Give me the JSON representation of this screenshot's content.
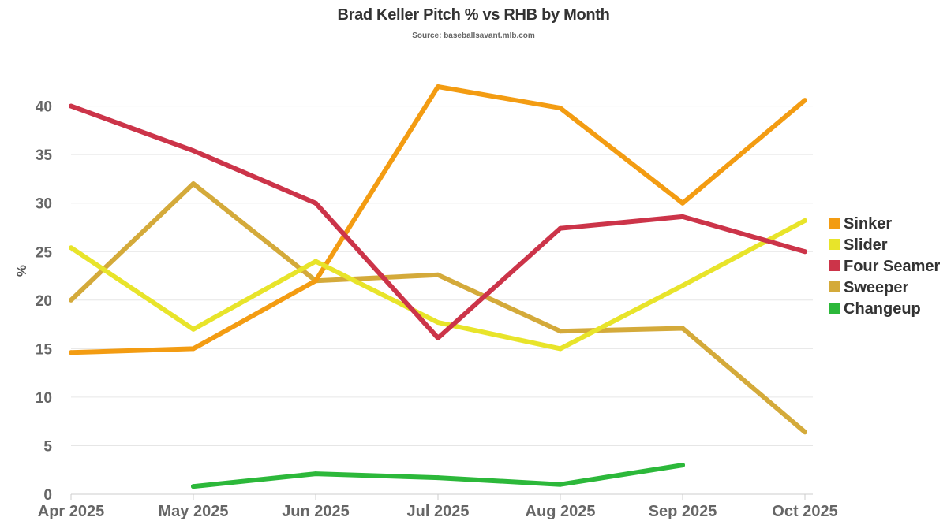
{
  "chart_data": {
    "type": "line",
    "title": "Brad Keller Pitch % vs RHB by Month",
    "subtitle": "Source: baseballsavant.mlb.com",
    "xlabel": "",
    "ylabel": "%",
    "categories": [
      "Apr 2025",
      "May 2025",
      "Jun 2025",
      "Jul 2025",
      "Aug 2025",
      "Sep 2025",
      "Oct 2025"
    ],
    "ylim": [
      0,
      42
    ],
    "yticks": [
      0,
      5,
      10,
      15,
      20,
      25,
      30,
      35,
      40
    ],
    "grid": true,
    "legend_position": "right",
    "series": [
      {
        "name": "Sinker",
        "color": "#f39c12",
        "values": [
          14.6,
          15.0,
          22.0,
          42.0,
          39.8,
          30.0,
          40.6
        ]
      },
      {
        "name": "Slider",
        "color": "#e8e42a",
        "values": [
          25.4,
          17.0,
          24.0,
          17.7,
          15.0,
          21.5,
          28.2
        ]
      },
      {
        "name": "Four Seamer",
        "color": "#cc3449",
        "values": [
          40.0,
          35.4,
          30.0,
          16.1,
          27.4,
          28.6,
          25.0
        ]
      },
      {
        "name": "Sweeper",
        "color": "#d4aa3a",
        "values": [
          20.0,
          32.0,
          22.0,
          22.6,
          16.8,
          17.1,
          6.4
        ]
      },
      {
        "name": "Changeup",
        "color": "#2cb83a",
        "values": [
          null,
          0.8,
          2.1,
          1.7,
          1.0,
          3.0,
          null
        ]
      }
    ]
  }
}
